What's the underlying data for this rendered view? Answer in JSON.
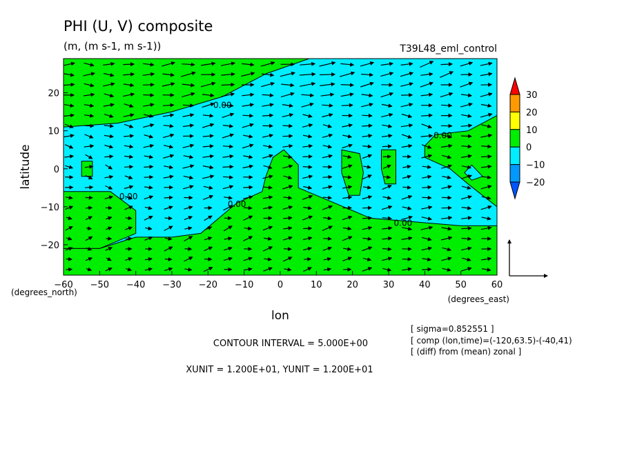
{
  "header": {
    "title": "PHI (U, V) composite",
    "units": "(m, (m s-1, m s-1))",
    "experiment": "T39L48_eml_control"
  },
  "axes": {
    "xlabel": "lon",
    "ylabel": "latitude",
    "x_unit_note": "(degrees_east)",
    "y_unit_note": "(degrees_north)"
  },
  "footer": {
    "contour_interval": "CONTOUR INTERVAL = 5.000E+00",
    "units_line": "XUNIT = 1.200E+01, YUNIT = 1.200E+01",
    "info": [
      "[ sigma=0.852551 ]",
      "[ comp (lon,time)=(-120,63.5)-(-40,41)",
      "[ (diff) from (mean) zonal ]"
    ]
  },
  "colors": {
    "positive": "#00ee00",
    "negative": "#00eeff",
    "level_20": "#ffff00",
    "level_30": "#ff9900",
    "top": "#ff0000",
    "level_m20": "#0099ff",
    "bottom": "#0055ff"
  },
  "chart_data": {
    "type": "heatmap",
    "title": "PHI (U, V) composite",
    "xlabel": "lon",
    "ylabel": "latitude",
    "xlim": [
      -60,
      60
    ],
    "ylim": [
      -28,
      29
    ],
    "xticks": [
      -60,
      -50,
      -40,
      -30,
      -20,
      -10,
      0,
      10,
      20,
      30,
      40,
      50,
      60
    ],
    "yticks": [
      -20,
      -10,
      0,
      10,
      20
    ],
    "contour_labels": [
      {
        "text": "0.00",
        "lon": -16,
        "lat": 16
      },
      {
        "text": "0.00",
        "lon": 45,
        "lat": 8
      },
      {
        "text": "0.00",
        "lon": -42,
        "lat": -8
      },
      {
        "text": "0.00",
        "lon": -12,
        "lat": -10
      },
      {
        "text": "0.00",
        "lon": 34,
        "lat": -15
      }
    ],
    "colorbar": {
      "levels": [
        -20,
        -10,
        0,
        10,
        20,
        30
      ],
      "labels": [
        "30",
        "20",
        "10",
        "0",
        "−10",
        "−20"
      ]
    },
    "regions": {
      "positive": [
        {
          "name": "north-band",
          "outline": [
            [
              -60,
              29
            ],
            [
              8,
              29
            ],
            [
              -4,
              25
            ],
            [
              -16,
              19
            ],
            [
              -30,
              15
            ],
            [
              -45,
              12
            ],
            [
              -60,
              11
            ]
          ]
        },
        {
          "name": "south-west-lobe",
          "outline": [
            [
              -60,
              -6
            ],
            [
              -47,
              -6
            ],
            [
              -40,
              -11
            ],
            [
              -40,
              -17
            ],
            [
              -50,
              -21
            ],
            [
              -60,
              -21
            ]
          ]
        },
        {
          "name": "south-main",
          "outline": [
            [
              -60,
              -28
            ],
            [
              -60,
              -21
            ],
            [
              -50,
              -21
            ],
            [
              -40,
              -18
            ],
            [
              -30,
              -18
            ],
            [
              -22,
              -17
            ],
            [
              -17,
              -13
            ],
            [
              -12,
              -9
            ],
            [
              -5,
              -6
            ],
            [
              -4,
              -2
            ],
            [
              -2,
              3
            ],
            [
              1,
              5
            ],
            [
              5,
              1
            ],
            [
              5,
              -5
            ],
            [
              15,
              -9
            ],
            [
              25,
              -13
            ],
            [
              50,
              -15
            ],
            [
              60,
              -15
            ],
            [
              60,
              -28
            ]
          ]
        },
        {
          "name": "east-upper",
          "outline": [
            [
              60,
              14
            ],
            [
              52,
              10
            ],
            [
              43,
              9
            ],
            [
              40,
              6
            ],
            [
              40,
              3
            ],
            [
              47,
              0
            ],
            [
              52,
              -4
            ],
            [
              60,
              -10
            ]
          ]
        },
        {
          "name": "blob-west",
          "outline": [
            [
              -55,
              2
            ],
            [
              -52,
              2
            ],
            [
              -52,
              -2
            ],
            [
              -55,
              -2
            ]
          ]
        },
        {
          "name": "blob-17",
          "outline": [
            [
              17,
              5
            ],
            [
              22,
              4
            ],
            [
              23,
              -1
            ],
            [
              22,
              -7
            ],
            [
              19,
              -7
            ],
            [
              17,
              -1
            ]
          ]
        },
        {
          "name": "blob-28",
          "outline": [
            [
              28,
              5
            ],
            [
              32,
              5
            ],
            [
              32,
              -4
            ],
            [
              29,
              -4
            ],
            [
              28,
              0
            ]
          ]
        }
      ],
      "negative_holes": [
        {
          "name": "hole-east",
          "outline": [
            [
              53,
              1
            ],
            [
              56,
              -2
            ],
            [
              53,
              -3
            ],
            [
              51,
              -1
            ]
          ]
        }
      ]
    },
    "wind_vectors": {
      "reference_xunit": 12,
      "reference_yunit": 12,
      "samples": [
        {
          "lon": -50,
          "lat": 25,
          "u": 6,
          "v": 0
        },
        {
          "lon": -20,
          "lat": 25,
          "u": 8,
          "v": 1
        },
        {
          "lon": 10,
          "lat": 25,
          "u": 9,
          "v": 1
        },
        {
          "lon": 40,
          "lat": 25,
          "u": 7,
          "v": 2
        },
        {
          "lon": -50,
          "lat": 10,
          "u": 5,
          "v": -1
        },
        {
          "lon": -20,
          "lat": 10,
          "u": 6,
          "v": 1
        },
        {
          "lon": 10,
          "lat": 10,
          "u": 5,
          "v": 0
        },
        {
          "lon": 40,
          "lat": 10,
          "u": 6,
          "v": -1
        },
        {
          "lon": -50,
          "lat": 0,
          "u": 4,
          "v": -1
        },
        {
          "lon": -20,
          "lat": 0,
          "u": 6,
          "v": 0
        },
        {
          "lon": 0,
          "lat": 0,
          "u": 5,
          "v": 0
        },
        {
          "lon": 30,
          "lat": 0,
          "u": 4,
          "v": 1
        },
        {
          "lon": -50,
          "lat": -15,
          "u": 3,
          "v": 1
        },
        {
          "lon": -20,
          "lat": -15,
          "u": 4,
          "v": 2
        },
        {
          "lon": 10,
          "lat": -15,
          "u": 5,
          "v": 1
        },
        {
          "lon": 40,
          "lat": -15,
          "u": 6,
          "v": 0
        },
        {
          "lon": -50,
          "lat": -25,
          "u": 3,
          "v": 0
        },
        {
          "lon": 10,
          "lat": -25,
          "u": 4,
          "v": 1
        },
        {
          "lon": 40,
          "lat": -25,
          "u": 5,
          "v": 0
        }
      ]
    }
  }
}
